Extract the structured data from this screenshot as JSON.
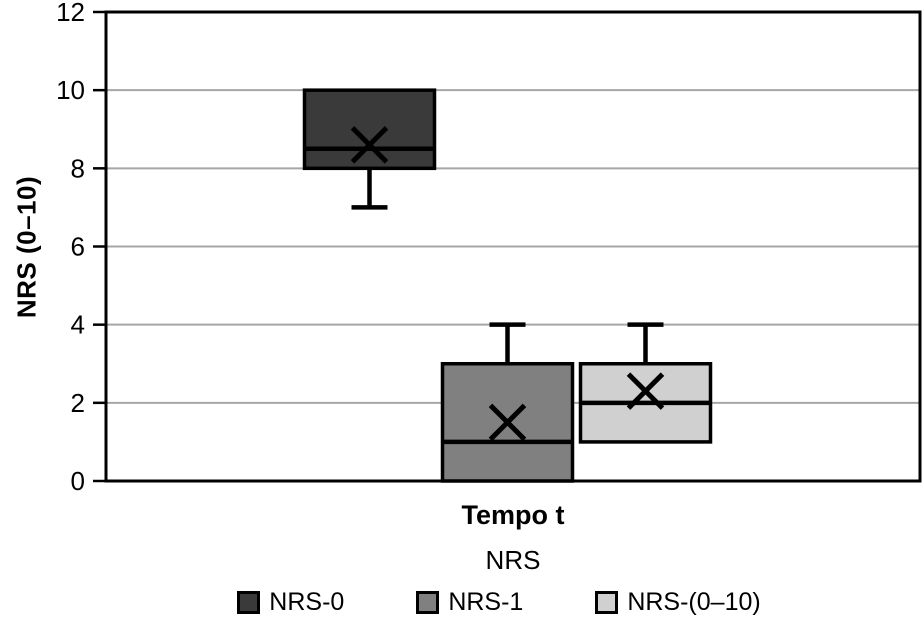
{
  "chart_data": {
    "type": "box",
    "title": "",
    "ylabel": "NRS (0–10)",
    "xlabel": "Tempo t",
    "axis_caption": "NRS",
    "ylim": [
      0,
      12
    ],
    "yticks": [
      0,
      2,
      4,
      6,
      8,
      10,
      12
    ],
    "grid": true,
    "grid_color": "#a6a6a6",
    "axis_color": "#000000",
    "legend_position": "bottom",
    "categories": [
      "Tempo t"
    ],
    "series": [
      {
        "name": "NRS-0",
        "color": "#3a3a3a",
        "whisker_low": 7,
        "q1": 8,
        "median": 8.5,
        "q3": 10,
        "whisker_high": 10,
        "mean": 8.6
      },
      {
        "name": "NRS-1",
        "color": "#808080",
        "whisker_low": 0,
        "q1": 0,
        "median": 1,
        "q3": 3,
        "whisker_high": 4,
        "mean": 1.5
      },
      {
        "name": "NRS-(0–10)",
        "color": "#d0d0d0",
        "whisker_low": 1,
        "q1": 1,
        "median": 2,
        "q3": 3,
        "whisker_high": 4,
        "mean": 2.3
      }
    ]
  }
}
